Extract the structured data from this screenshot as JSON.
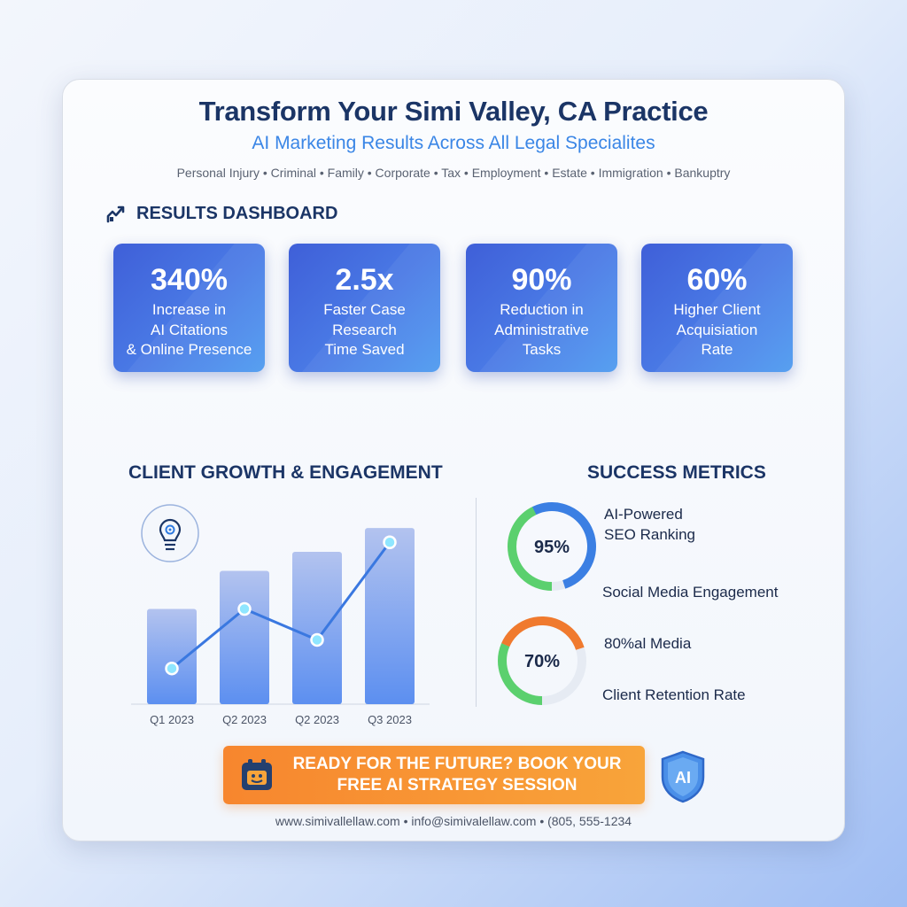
{
  "header": {
    "title": "Transform Your Simi Valley, CA Practice",
    "subtitle": "AI Marketing Results Across All Legal Specialites",
    "specialties": "Personal Injury • Criminal • Family • Corporate • Tax • Employment • Estate • Immigration • Bankuptry"
  },
  "dashboard": {
    "heading": "RESULTS DASHBOARD",
    "icon": "chart-icon",
    "stats": [
      {
        "value": "340%",
        "line1": "Increase in",
        "line2": "AI Citations",
        "line3": "& Online Presence"
      },
      {
        "value": "2.5x",
        "line1": "Faster Case",
        "line2": "Research",
        "line3": "Time Saved"
      },
      {
        "value": "90%",
        "line1": "Reduction in",
        "line2": "Administrative",
        "line3": "Tasks"
      },
      {
        "value": "60%",
        "line1": "Higher Client",
        "line2": "Acquisiation",
        "line3": "Rate"
      }
    ]
  },
  "growth": {
    "heading": "CLIENT GROWTH & ENGAGEMENT",
    "icon": "lightbulb-gear-icon"
  },
  "chart_data": {
    "type": "bar",
    "categories": [
      "Q1 2023",
      "Q2 2023",
      "Q2 2023",
      "Q3 2023"
    ],
    "values": [
      40,
      56,
      64,
      74
    ],
    "line_values": [
      15,
      40,
      27,
      68
    ],
    "ylim": [
      0,
      80
    ],
    "grid": false,
    "colors": {
      "bar_top": "#b3c3ef",
      "bar_bottom": "#5c8ff0",
      "line": "#3a78e0",
      "point": "#8fe6ff"
    }
  },
  "metrics": {
    "heading": "SUCCESS METRICS",
    "items": [
      {
        "percent": "95%",
        "label_line1": "AI-Powered",
        "label_line2": "SEO Ranking",
        "sub_label": "Social Media Engagement",
        "value": 95
      },
      {
        "percent": "70%",
        "label_line1": "80%al Media",
        "label_line2": "",
        "sub_label": "Client Retention Rate",
        "value": 70
      }
    ]
  },
  "cta": {
    "line1": "READY FOR THE FUTURE? BOOK YOUR",
    "line2": "FREE AI STRATEGY SESSION",
    "icon": "calendar-icon"
  },
  "badge": {
    "text": "AI",
    "icon": "shield-icon"
  },
  "footer": {
    "contact": "www.simivallellaw.com • info@simivalellaw.com • (805, 555-1234"
  }
}
